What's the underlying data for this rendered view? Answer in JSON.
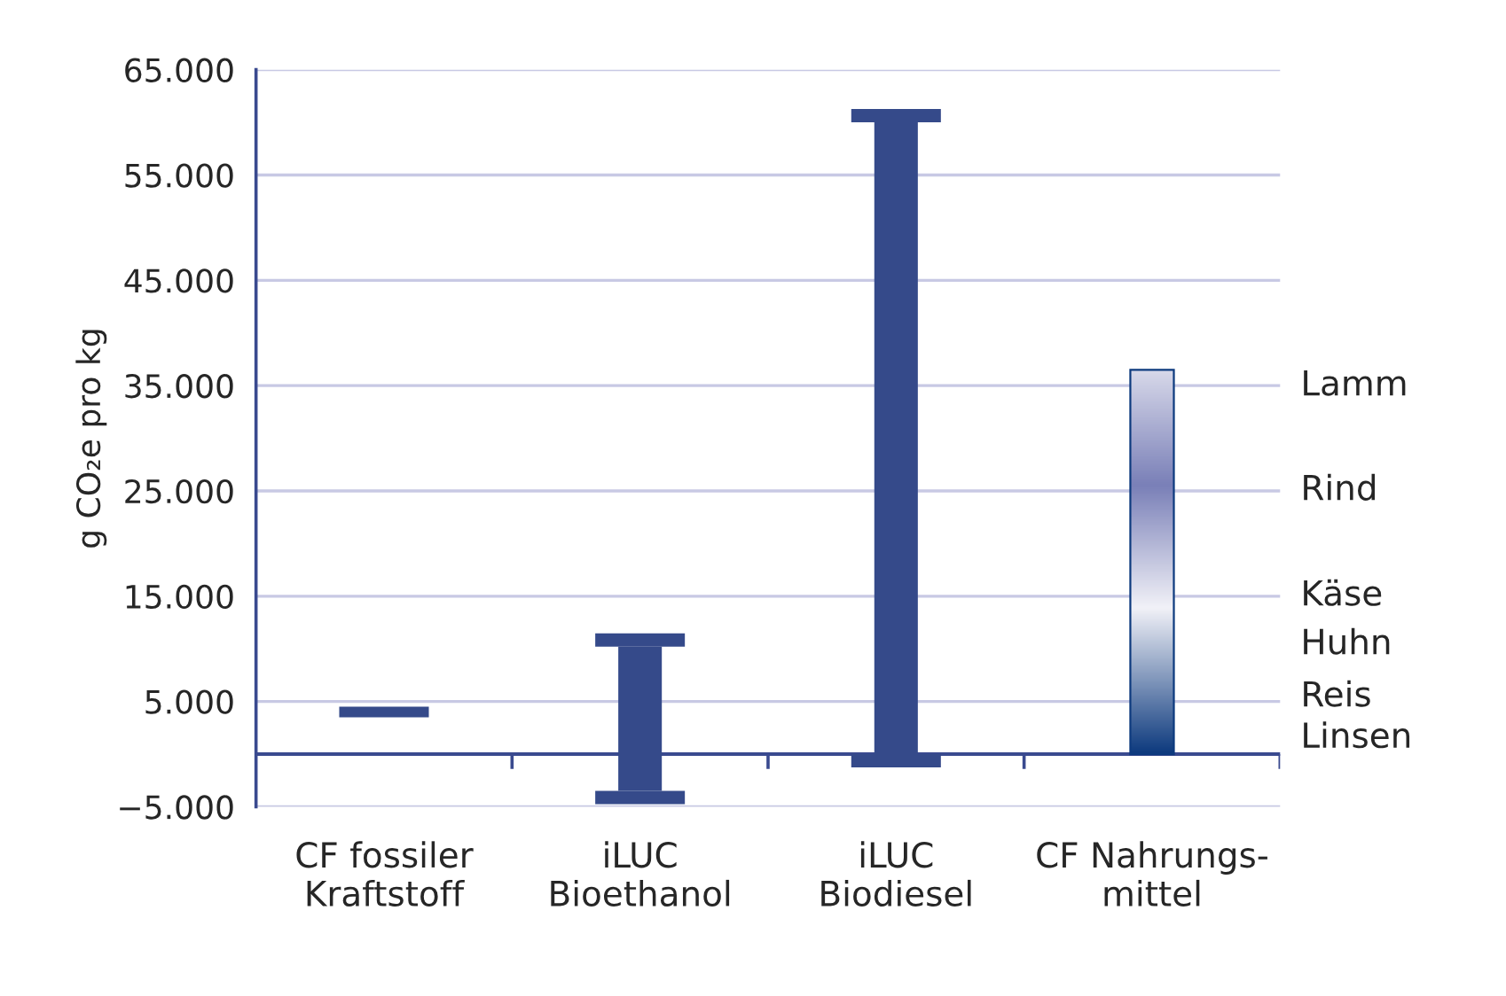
{
  "chart_data": {
    "type": "bar",
    "ylabel": "g CO₂e pro kg",
    "categories": [
      "CF fossiler\nKraftstoff",
      "iLUC\nBioethanol",
      "iLUC\nBiodiesel",
      "CF Nahrungs-\nmittel"
    ],
    "base": [
      3500,
      -3500,
      0,
      0
    ],
    "values": [
      1000,
      13700,
      60000,
      36500
    ],
    "colors": [
      "#354a8a",
      "#354a8a",
      "#354a8a",
      "#0d3a7e"
    ],
    "ylim": [
      -5000,
      65000
    ],
    "yticks": [
      {
        "value": -5000,
        "label": "−5.000"
      },
      {
        "value": 5000,
        "label": "5.000"
      },
      {
        "value": 15000,
        "label": "15.000"
      },
      {
        "value": 25000,
        "label": "25.000"
      },
      {
        "value": 35000,
        "label": "35.000"
      },
      {
        "value": 45000,
        "label": "45.000"
      },
      {
        "value": 55000,
        "label": "55.000"
      },
      {
        "value": 65000,
        "label": "65.000"
      }
    ],
    "grid": "y",
    "ref_lines": [
      {
        "axis": "y",
        "value": 0,
        "color": "#3a4a8f"
      }
    ],
    "annotations": [
      "Lamm",
      "Rind",
      "Käse",
      "Huhn",
      "Reis",
      "Linsen"
    ]
  }
}
